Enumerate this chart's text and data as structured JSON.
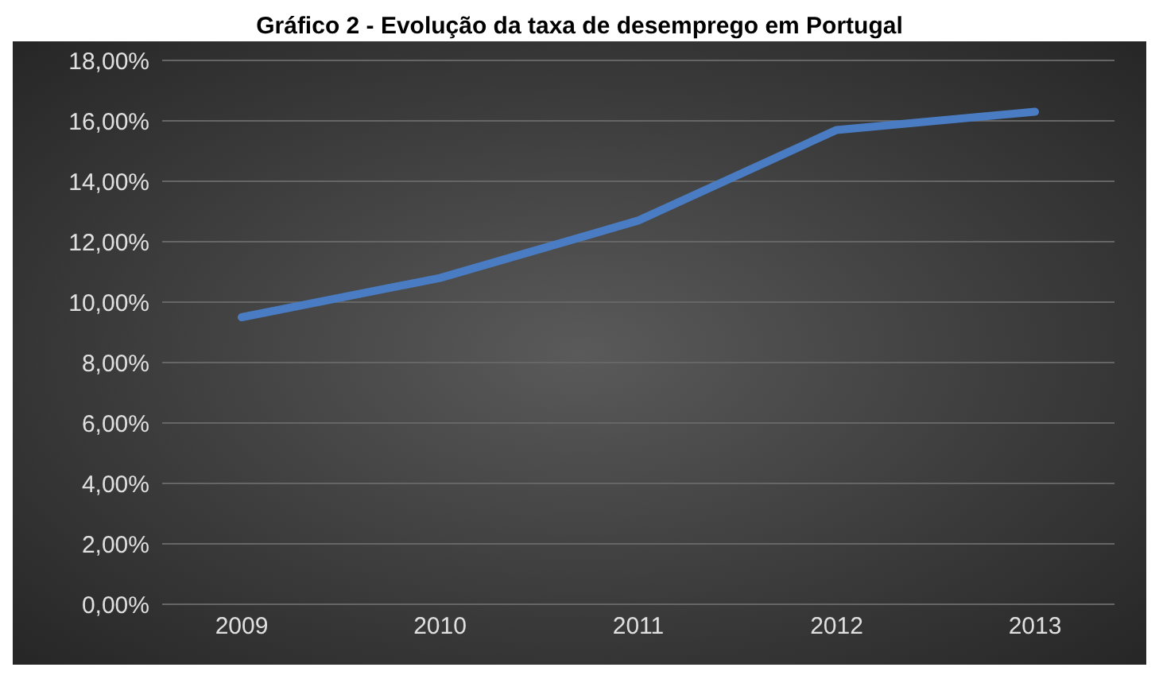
{
  "chart_data": {
    "type": "line",
    "title": "Gráfico 2 - Evolução da taxa de desemprego em Portugal",
    "categories": [
      "2009",
      "2010",
      "2011",
      "2012",
      "2013"
    ],
    "series": [
      {
        "color": "#4a7cc4",
        "values": [
          9.5,
          10.8,
          12.7,
          15.7,
          16.3
        ]
      }
    ],
    "ylim": [
      0,
      18
    ],
    "yticks": [
      {
        "value": 0,
        "label": "0,00%"
      },
      {
        "value": 2,
        "label": "2,00%"
      },
      {
        "value": 4,
        "label": "4,00%"
      },
      {
        "value": 6,
        "label": "6,00%"
      },
      {
        "value": 8,
        "label": "8,00%"
      },
      {
        "value": 10,
        "label": "10,00%"
      },
      {
        "value": 12,
        "label": "12,00%"
      },
      {
        "value": 14,
        "label": "14,00%"
      },
      {
        "value": 16,
        "label": "16,00%"
      },
      {
        "value": 18,
        "label": "18,00%"
      }
    ],
    "grid": "y",
    "legend": false,
    "marker": "none",
    "line_style": "solid"
  }
}
